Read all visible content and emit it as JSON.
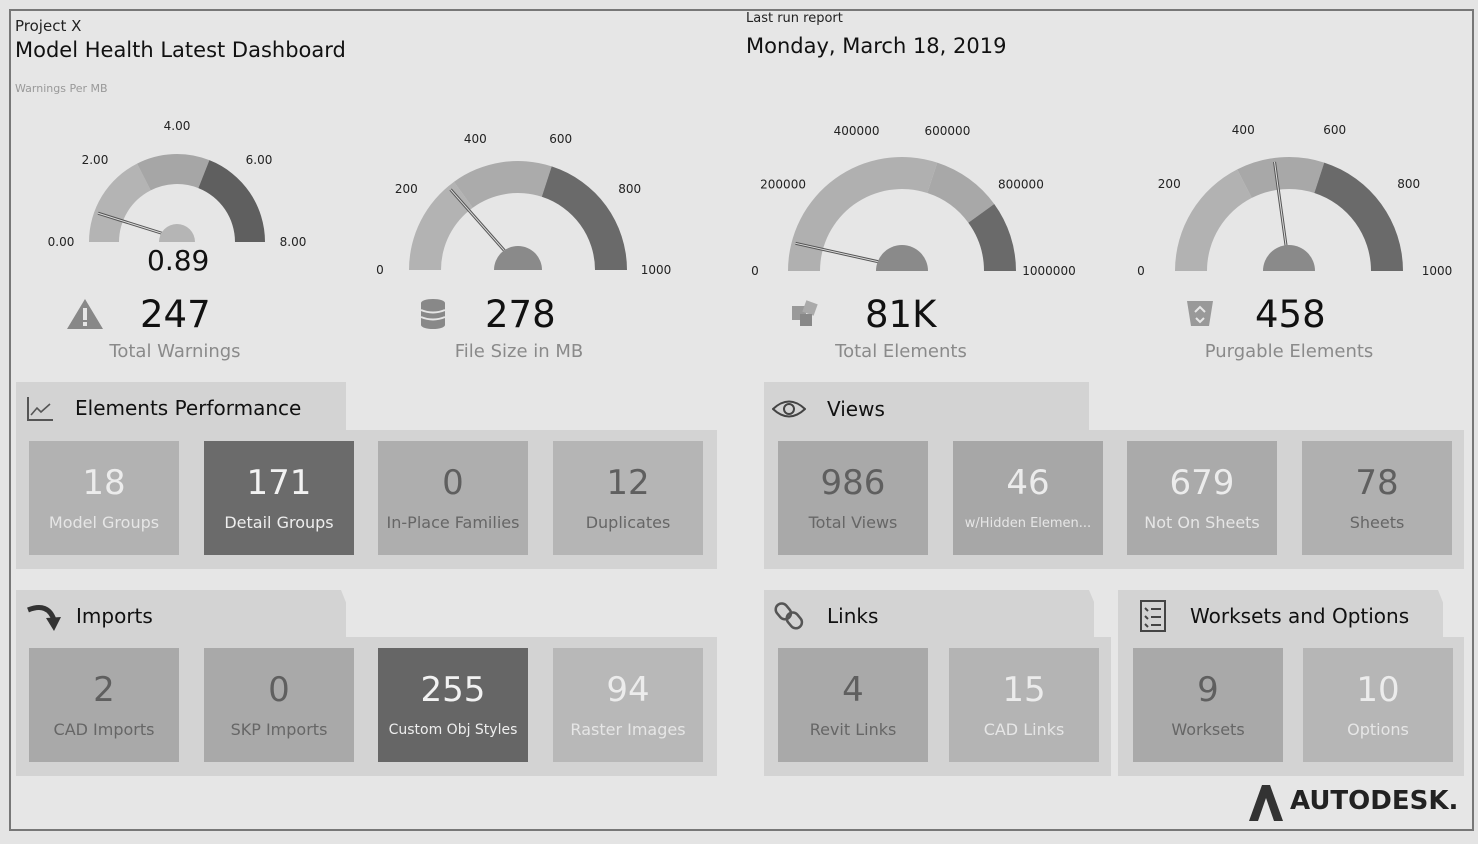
{
  "header": {
    "project": "Project X",
    "title": "Model Health Latest Dashboard",
    "last_run_label": "Last run report",
    "date": "Monday, March 18, 2019",
    "gauge_caption": "Warnings Per MB"
  },
  "gauges": [
    {
      "value_text": "0.89",
      "value": 0.89,
      "min": 0,
      "max": 8,
      "ticks": [
        "0.00",
        "2.00",
        "4.00",
        "6.00",
        "8.00"
      ],
      "kpi_value": "247",
      "kpi_label": "Total Warnings",
      "icon": "warning-icon"
    },
    {
      "value": 278,
      "min": 0,
      "max": 1000,
      "ticks": [
        "0",
        "200",
        "400",
        "600",
        "800",
        "1000"
      ],
      "kpi_value": "278",
      "kpi_label": "File Size in MB",
      "icon": "database-icon"
    },
    {
      "value": 81000,
      "min": 0,
      "max": 1000000,
      "ticks": [
        "0",
        "200000",
        "400000",
        "600000",
        "800000",
        "1000000"
      ],
      "kpi_value": "81K",
      "kpi_label": "Total Elements",
      "icon": "elements-icon"
    },
    {
      "value": 458,
      "min": 0,
      "max": 1000,
      "ticks": [
        "0",
        "200",
        "400",
        "600",
        "800",
        "1000"
      ],
      "kpi_value": "458",
      "kpi_label": "Purgable Elements",
      "icon": "recycle-bin-icon"
    }
  ],
  "sections": {
    "elements_performance": {
      "title": "Elements Performance",
      "icon": "line-chart-icon",
      "tiles": [
        {
          "value": "18",
          "label": "Model Groups"
        },
        {
          "value": "171",
          "label": "Detail Groups"
        },
        {
          "value": "0",
          "label": "In-Place Families"
        },
        {
          "value": "12",
          "label": "Duplicates"
        }
      ]
    },
    "views": {
      "title": "Views",
      "icon": "eye-icon",
      "tiles": [
        {
          "value": "986",
          "label": "Total Views"
        },
        {
          "value": "46",
          "label": "w/Hidden Elemen..."
        },
        {
          "value": "679",
          "label": "Not On Sheets"
        },
        {
          "value": "78",
          "label": "Sheets"
        }
      ]
    },
    "imports": {
      "title": "Imports",
      "icon": "curved-arrow-icon",
      "tiles": [
        {
          "value": "2",
          "label": "CAD Imports"
        },
        {
          "value": "0",
          "label": "SKP Imports"
        },
        {
          "value": "255",
          "label": "Custom Obj Styles"
        },
        {
          "value": "94",
          "label": "Raster Images"
        }
      ]
    },
    "links": {
      "title": "Links",
      "icon": "link-icon",
      "tiles": [
        {
          "value": "4",
          "label": "Revit Links"
        },
        {
          "value": "15",
          "label": "CAD Links"
        }
      ]
    },
    "worksets": {
      "title": "Worksets and Options",
      "icon": "checklist-icon",
      "tiles": [
        {
          "value": "9",
          "label": "Worksets"
        },
        {
          "value": "10",
          "label": "Options"
        }
      ]
    }
  },
  "brand": {
    "logo_text": "AUTODESK."
  }
}
